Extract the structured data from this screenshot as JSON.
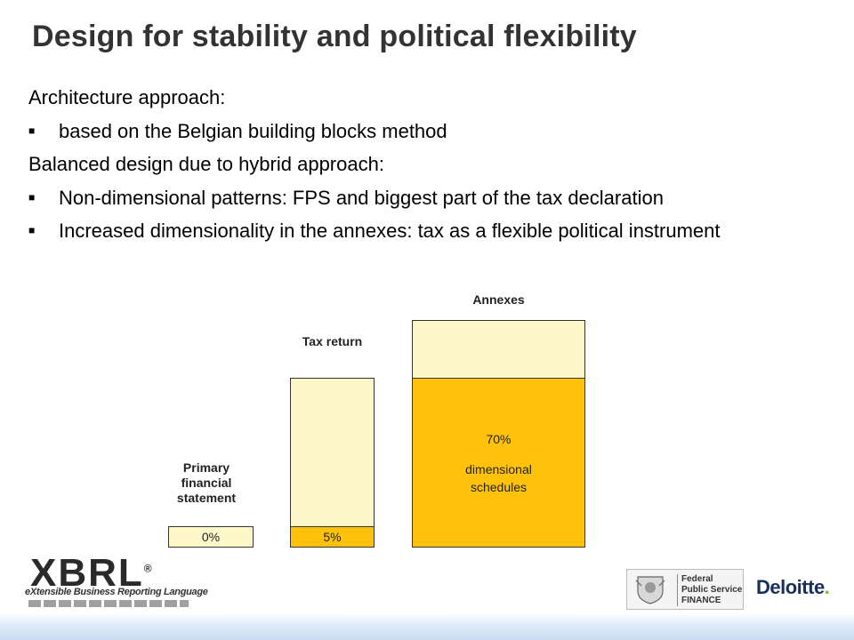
{
  "slide": {
    "title": "Design for stability and political flexibility",
    "content": {
      "para1": "Architecture approach:",
      "bullet1": "based on the Belgian building blocks method",
      "para2": "Balanced design due to hybrid approach:",
      "bullet2": "Non-dimensional patterns: FPS and biggest part of the tax declaration",
      "bullet3": "Increased dimensionality in the annexes: tax as a flexible political instrument",
      "bullet_symbol": "■"
    }
  },
  "chart_data": {
    "type": "bar",
    "categories": [
      "Primary financial statement",
      "Tax return",
      "Annexes"
    ],
    "values": [
      0,
      5,
      70
    ],
    "value_labels": [
      "0%",
      "5%",
      "70%"
    ],
    "annotation": "dimensional schedules",
    "colors": {
      "dimensional": "#fdc209",
      "non_dimensional": "#fef8c8"
    }
  },
  "logos": {
    "xbrl_word": "XBRL",
    "xbrl_registered": "®",
    "xbrl_tagline": "eXtensible Business Reporting Language",
    "fps_line1": "Federal",
    "fps_line2": "Public Service",
    "fps_line3": "FINANCE",
    "deloitte": "Deloitte",
    "deloitte_dot": "."
  }
}
